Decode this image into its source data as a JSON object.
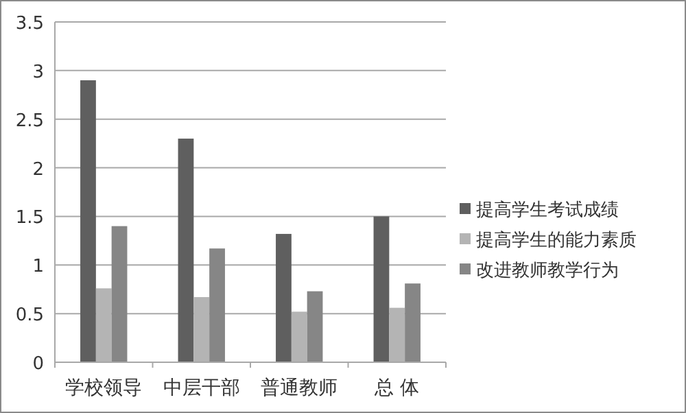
{
  "chart_data": {
    "type": "bar",
    "categories": [
      "学校领导",
      "中层干部",
      "普通教师",
      "总 体"
    ],
    "series": [
      {
        "name": "提高学生考试成绩",
        "color": "#5f5f5f",
        "values": [
          2.9,
          2.3,
          1.32,
          1.5
        ]
      },
      {
        "name": "提高学生的能力素质",
        "color": "#b4b4b4",
        "values": [
          0.76,
          0.67,
          0.52,
          0.56
        ]
      },
      {
        "name": "改进教师教学行为",
        "color": "#868686",
        "values": [
          1.4,
          1.17,
          0.73,
          0.81
        ]
      }
    ],
    "ylim": [
      0,
      3.5
    ],
    "yticks": [
      0,
      0.5,
      1,
      1.5,
      2,
      2.5,
      3,
      3.5
    ],
    "grid": "y",
    "legend": "right"
  }
}
